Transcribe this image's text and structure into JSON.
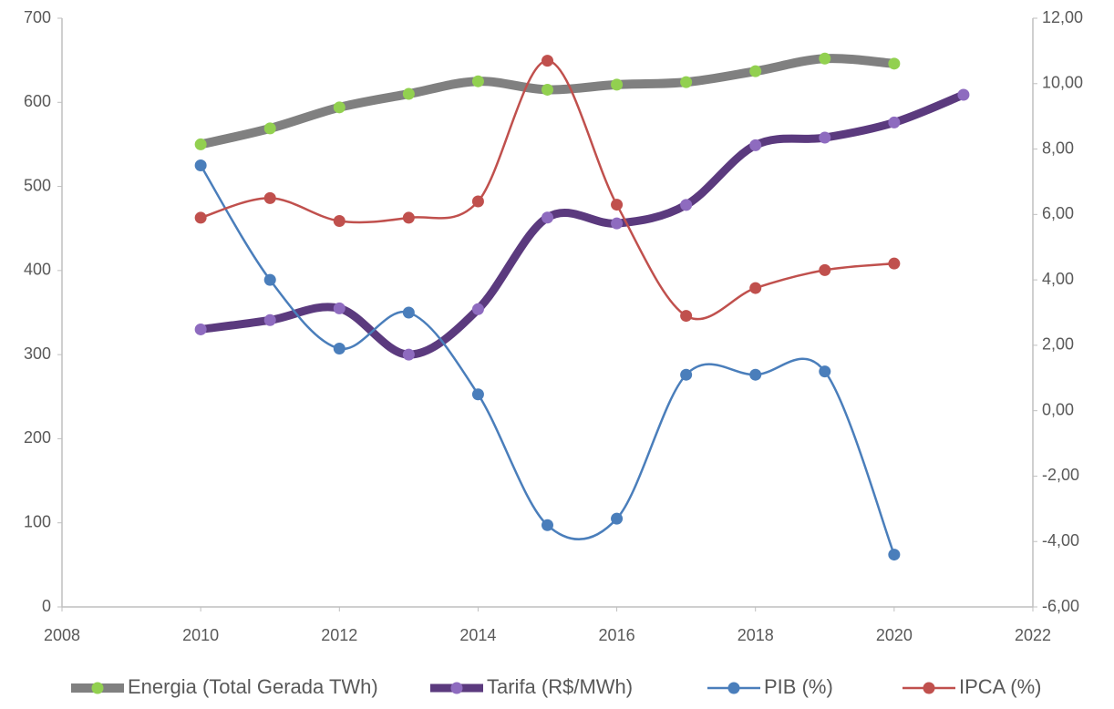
{
  "chart_data": {
    "type": "line",
    "x": [
      2010,
      2011,
      2012,
      2013,
      2014,
      2015,
      2016,
      2017,
      2018,
      2019,
      2020,
      2021
    ],
    "series": [
      {
        "name": "Energia (Total Gerada TWh)",
        "color": "#808080",
        "marker_color": "#92d050",
        "values": [
          550,
          569,
          594,
          610,
          625,
          615,
          621,
          624,
          637,
          652,
          646,
          null
        ]
      },
      {
        "name": "Tarifa (R$/MWh)",
        "color": "#5b3a7e",
        "marker_color": "#8e6bbf",
        "values": [
          330,
          341,
          355,
          300,
          354,
          463,
          456,
          478,
          549,
          558,
          576,
          609
        ]
      },
      {
        "name": "PIB (%)",
        "color": "#4a7ebb",
        "marker_color": "#4a7ebb",
        "axis": "y2",
        "values": [
          7.5,
          4.0,
          1.9,
          3.0,
          0.5,
          -3.5,
          -3.3,
          1.1,
          1.1,
          1.2,
          -4.4,
          null
        ]
      },
      {
        "name": "IPCA (%)",
        "color": "#c0504d",
        "marker_color": "#c0504d",
        "axis": "y2",
        "values": [
          5.9,
          6.5,
          5.8,
          5.9,
          6.4,
          10.7,
          6.3,
          2.9,
          3.75,
          4.3,
          4.5,
          null
        ]
      }
    ],
    "xlim": [
      2008,
      2022
    ],
    "xticks": [
      2008,
      2010,
      2012,
      2014,
      2016,
      2018,
      2020,
      2022
    ],
    "ylim": [
      0,
      700
    ],
    "yticks": [
      0,
      100,
      200,
      300,
      400,
      500,
      600,
      700
    ],
    "y2lim": [
      -6,
      12
    ],
    "y2ticks": [
      {
        "value": -6,
        "label": "-6,00"
      },
      {
        "value": -4,
        "label": "-4,00"
      },
      {
        "value": -2,
        "label": "-2,00"
      },
      {
        "value": 0,
        "label": "0,00"
      },
      {
        "value": 2,
        "label": "2,00"
      },
      {
        "value": 4,
        "label": "4,00"
      },
      {
        "value": 6,
        "label": "6,00"
      },
      {
        "value": 8,
        "label": "8,00"
      },
      {
        "value": 10,
        "label": "10,00"
      },
      {
        "value": 12,
        "label": "12,00"
      }
    ],
    "legend": "bottom",
    "grid": false
  }
}
